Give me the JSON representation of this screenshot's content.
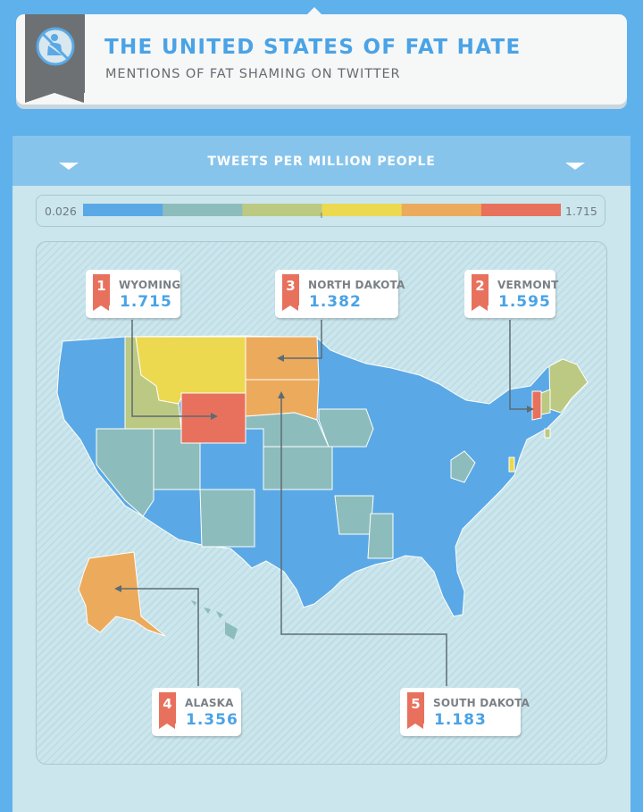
{
  "header": {
    "title": "THE UNITED STATES OF FAT HATE",
    "subtitle": "MENTIONS OF FAT SHAMING ON TWITTER",
    "icon": "seatbelt-prohibited-icon"
  },
  "panel": {
    "title": "TWEETS PER MILLION PEOPLE"
  },
  "legend": {
    "min": "0.026",
    "max": "1.715",
    "colors": [
      "#5aa9e6",
      "#8dbcbc",
      "#bcc982",
      "#ecd94f",
      "#ecab5c",
      "#e8715d"
    ]
  },
  "callouts": [
    {
      "rank": "1",
      "state": "WYOMING",
      "value": "1.715"
    },
    {
      "rank": "3",
      "state": "NORTH DAKOTA",
      "value": "1.382"
    },
    {
      "rank": "2",
      "state": "VERMONT",
      "value": "1.595"
    },
    {
      "rank": "4",
      "state": "ALASKA",
      "value": "1.356"
    },
    {
      "rank": "5",
      "state": "SOUTH DAKOTA",
      "value": "1.183"
    }
  ]
}
